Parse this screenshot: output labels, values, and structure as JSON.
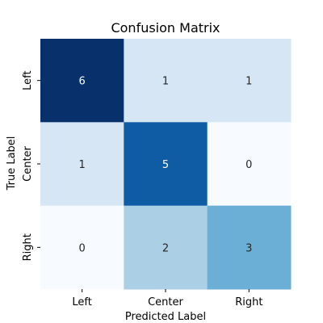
{
  "chart_data": {
    "type": "heatmap",
    "title": "Confusion Matrix",
    "xlabel": "Predicted Label",
    "ylabel": "True Label",
    "x_categories": [
      "Left",
      "Center",
      "Right"
    ],
    "y_categories": [
      "Left",
      "Center",
      "Right"
    ],
    "values": [
      [
        6,
        1,
        1
      ],
      [
        1,
        5,
        0
      ],
      [
        0,
        2,
        3
      ]
    ],
    "colormap": "Blues",
    "colorbar": false,
    "value_range": [
      0,
      6
    ]
  }
}
